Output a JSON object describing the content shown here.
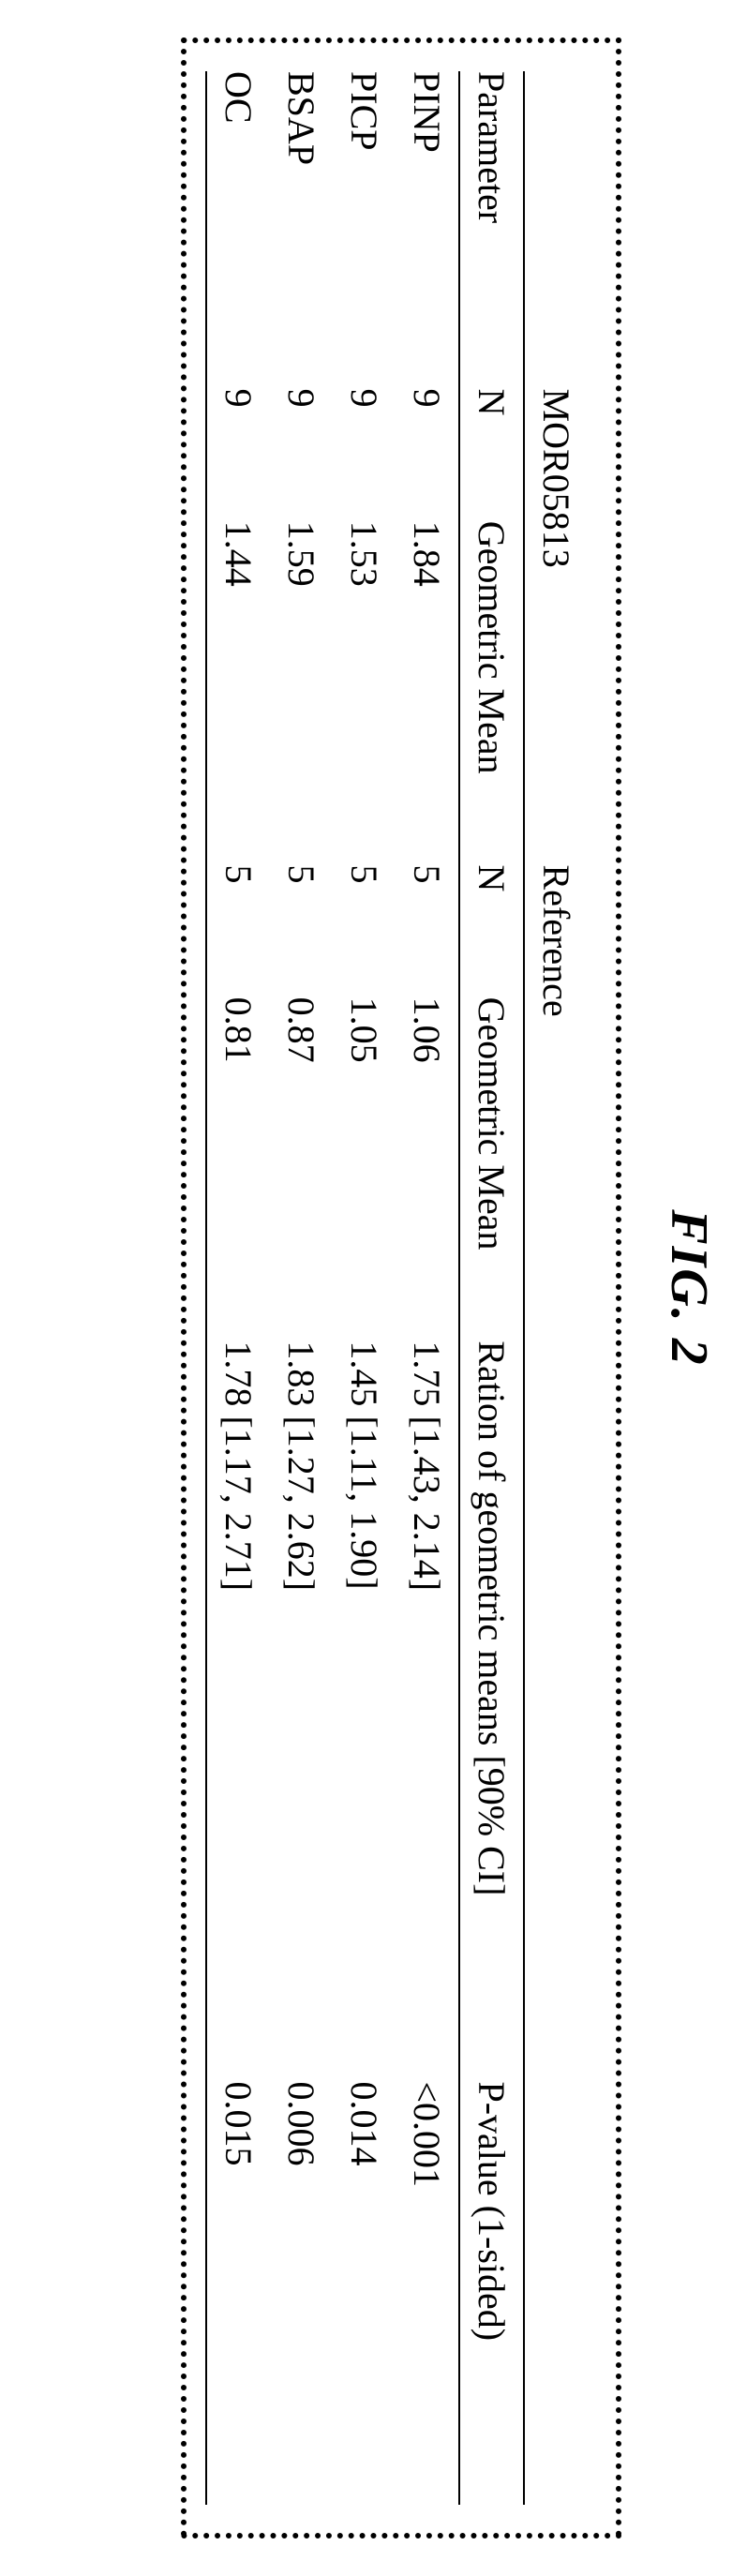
{
  "figure": {
    "title": "FIG. 2"
  },
  "table": {
    "groups": {
      "treatment": "MOR05813",
      "reference": "Reference"
    },
    "headers": {
      "parameter": "Parameter",
      "n": "N",
      "geomean": "Geometric Mean",
      "ratio": "Ration of geometric means [90% CI]",
      "pvalue": "P-value (1-sided)"
    },
    "rows": [
      {
        "param": "PINP",
        "n1": "9",
        "gm1": "1.84",
        "n2": "5",
        "gm2": "1.06",
        "ratio": "1.75 [1.43, 2.14]",
        "p": "<0.001"
      },
      {
        "param": "PICP",
        "n1": "9",
        "gm1": "1.53",
        "n2": "5",
        "gm2": "1.05",
        "ratio": "1.45 [1.11, 1.90]",
        "p": "0.014"
      },
      {
        "param": "BSAP",
        "n1": "9",
        "gm1": "1.59",
        "n2": "5",
        "gm2": "0.87",
        "ratio": "1.83 [1.27, 2.62]",
        "p": "0.006"
      },
      {
        "param": "OC",
        "n1": "9",
        "gm1": "1.44",
        "n2": "5",
        "gm2": "0.81",
        "ratio": "1.78 [1.17, 2.71]",
        "p": "0.015"
      }
    ]
  }
}
